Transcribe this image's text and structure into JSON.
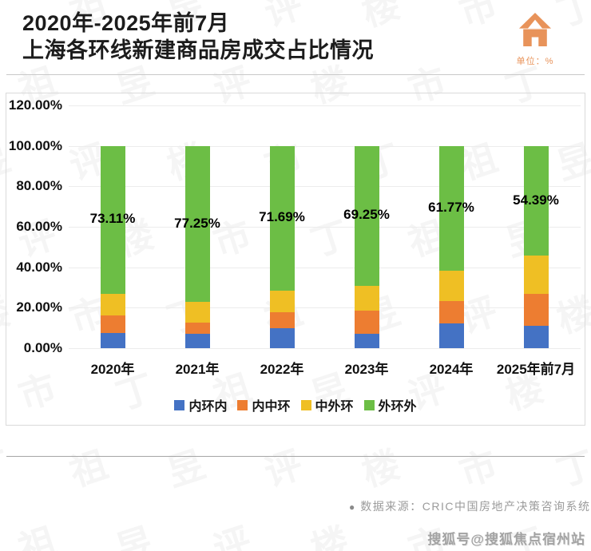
{
  "header": {
    "title_line1": "2020年-2025年前7月",
    "title_line2": "上海各环线新建商品房成交占比情况",
    "unit_label": "单位：%"
  },
  "colors": {
    "accent_orange": "#E8935A",
    "series_blue": "#4472C4",
    "series_orange": "#ED7D31",
    "series_yellow": "#EFBF24",
    "series_green": "#6CBE45"
  },
  "chart_data": {
    "type": "bar",
    "subtype": "stacked-percent-column",
    "title": "2020年-2025年前7月上海各环线新建商品房成交占比情况",
    "unit": "%",
    "categories": [
      "2020年",
      "2021年",
      "2022年",
      "2023年",
      "2024年",
      "2025年前7月"
    ],
    "series": [
      {
        "name": "内环内",
        "color": "#4472C4",
        "values": [
          7.6,
          7.2,
          9.9,
          7.1,
          12.3,
          11.0
        ]
      },
      {
        "name": "内中环",
        "color": "#ED7D31",
        "values": [
          8.5,
          5.6,
          7.9,
          11.6,
          11.1,
          15.7
        ]
      },
      {
        "name": "中外环",
        "color": "#EFBF24",
        "values": [
          10.79,
          9.95,
          10.51,
          12.05,
          14.83,
          18.91
        ]
      },
      {
        "name": "外环外",
        "color": "#6CBE45",
        "values": [
          73.11,
          77.25,
          71.69,
          69.25,
          61.77,
          54.39
        ]
      }
    ],
    "data_labels": {
      "series": "外环外",
      "labels": [
        "73.11%",
        "77.25%",
        "71.69%",
        "69.25%",
        "61.77%",
        "54.39%"
      ]
    },
    "y_axis": {
      "min": 0,
      "max": 120,
      "ticks": [
        {
          "value": 0,
          "label": "0.00%"
        },
        {
          "value": 20,
          "label": "20.00%"
        },
        {
          "value": 40,
          "label": "40.00%"
        },
        {
          "value": 60,
          "label": "60.00%"
        },
        {
          "value": 80,
          "label": "80.00%"
        },
        {
          "value": 100,
          "label": "100.00%"
        },
        {
          "value": 120,
          "label": "120.00%"
        }
      ]
    },
    "grid": true,
    "legend_position": "bottom-center"
  },
  "footer": {
    "source_bullet": "●",
    "source_note": "数据来源：CRIC中国房地产决策咨询系统",
    "sohu_badge": "搜狐号@搜狐焦点宿州站"
  },
  "watermark_text": "丁祖昱评楼市"
}
